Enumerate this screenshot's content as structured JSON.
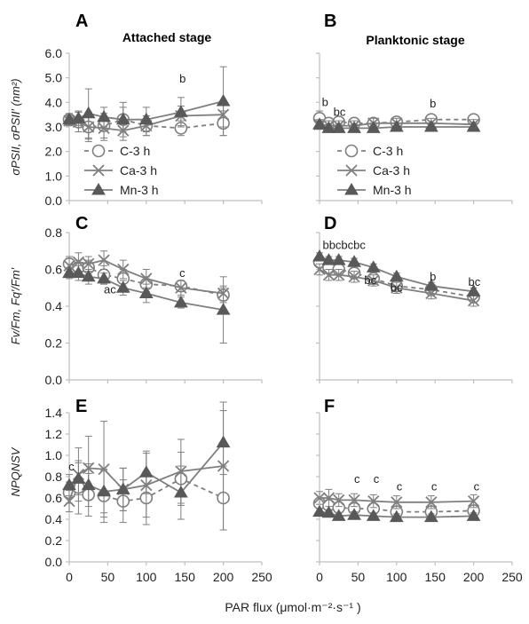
{
  "figure": {
    "stage_left": "Attached stage",
    "stage_right": "Planktonic stage",
    "xlabel": "PAR flux (μmol·m⁻²·s⁻¹ )",
    "ylabels": [
      "σPSII, σPSII′ (nm²)",
      "Fv/Fm, Fq′/Fm′",
      "NPQNSV"
    ],
    "legend": [
      {
        "name": "C-3 h",
        "marker": "circle",
        "dash": true
      },
      {
        "name": "Ca-3 h",
        "marker": "x",
        "dash": false
      },
      {
        "name": "Mn-3 h",
        "marker": "triangle",
        "dash": false
      }
    ],
    "colors": {
      "line": "#7f7f7f",
      "mn_fill": "#595959",
      "error": "#7f7f7f",
      "axis": "#bfbfbf"
    }
  },
  "chart_data": [
    {
      "panel": "A",
      "type": "line",
      "x": [
        0,
        12,
        25,
        45,
        70,
        100,
        145,
        200
      ],
      "xlim": [
        0,
        250
      ],
      "ylim": [
        0,
        6
      ],
      "yticks": [
        "0.0",
        "1.0",
        "2.0",
        "3.0",
        "4.0",
        "5.0",
        "6.0"
      ],
      "xticks": [
        "0",
        "50",
        "100",
        "150",
        "200",
        "250"
      ],
      "series": [
        {
          "name": "C-3 h",
          "values": [
            3.3,
            3.2,
            3.0,
            3.05,
            3.3,
            3.05,
            2.95,
            3.15
          ],
          "err": [
            0.25,
            0.4,
            0.6,
            0.5,
            0.7,
            0.4,
            0.3,
            0.5
          ]
        },
        {
          "name": "Ca-3 h",
          "values": [
            3.25,
            3.2,
            3.0,
            2.95,
            2.85,
            3.05,
            3.45,
            3.5
          ],
          "err": [
            0.2,
            0.4,
            0.5,
            0.5,
            0.4,
            0.4,
            0.4,
            0.5
          ]
        },
        {
          "name": "Mn-3 h",
          "values": [
            3.3,
            3.35,
            3.55,
            3.4,
            3.3,
            3.3,
            3.6,
            4.05
          ],
          "err": [
            0.2,
            0.3,
            1.0,
            0.4,
            0.5,
            0.5,
            0.6,
            1.4
          ]
        }
      ],
      "annotations": [
        {
          "text": "b",
          "x": 143,
          "y": 4.8
        }
      ]
    },
    {
      "panel": "B",
      "type": "line",
      "x": [
        0,
        12,
        25,
        45,
        70,
        100,
        145,
        200
      ],
      "xlim": [
        0,
        250
      ],
      "ylim": [
        0,
        6
      ],
      "yticks": [
        "0.0",
        "1.0",
        "2.0",
        "3.0",
        "4.0",
        "5.0",
        "6.0"
      ],
      "xticks": [
        "0",
        "50",
        "100",
        "150",
        "200",
        "250"
      ],
      "series": [
        {
          "name": "C-3 h",
          "values": [
            3.35,
            3.15,
            3.2,
            3.15,
            3.15,
            3.2,
            3.3,
            3.3
          ],
          "err": [
            0.3,
            0.2,
            0.2,
            0.2,
            0.2,
            0.2,
            0.2,
            0.2
          ]
        },
        {
          "name": "Ca-3 h",
          "values": [
            3.1,
            3.05,
            3.05,
            3.05,
            3.15,
            3.15,
            3.15,
            3.1
          ],
          "err": [
            0.2,
            0.2,
            0.2,
            0.2,
            0.2,
            0.2,
            0.2,
            0.2
          ]
        },
        {
          "name": "Mn-3 h",
          "values": [
            3.1,
            2.95,
            2.95,
            2.95,
            2.95,
            3.0,
            3.0,
            3.0
          ],
          "err": [
            0.15,
            0.15,
            0.15,
            0.15,
            0.15,
            0.15,
            0.15,
            0.15
          ]
        }
      ],
      "annotations": [
        {
          "text": "b",
          "x": 3,
          "y": 3.85
        },
        {
          "text": "bc",
          "x": 18,
          "y": 3.45
        },
        {
          "text": "b",
          "x": 143,
          "y": 3.8
        }
      ]
    },
    {
      "panel": "C",
      "type": "line",
      "x": [
        0,
        12,
        25,
        45,
        70,
        100,
        145,
        200
      ],
      "xlim": [
        0,
        250
      ],
      "ylim": [
        0,
        0.8
      ],
      "yticks": [
        "0.0",
        "0.2",
        "0.4",
        "0.6",
        "0.8"
      ],
      "xticks": [
        "0",
        "50",
        "100",
        "150",
        "200",
        "250"
      ],
      "series": [
        {
          "name": "C-3 h",
          "values": [
            0.63,
            0.61,
            0.61,
            0.57,
            0.55,
            0.52,
            0.51,
            0.46
          ],
          "err": [
            0.04,
            0.04,
            0.04,
            0.05,
            0.05,
            0.04,
            0.03,
            0.04
          ]
        },
        {
          "name": "Ca-3 h",
          "values": [
            0.62,
            0.64,
            0.63,
            0.65,
            0.6,
            0.55,
            0.5,
            0.47
          ],
          "err": [
            0.04,
            0.05,
            0.04,
            0.05,
            0.05,
            0.05,
            0.04,
            0.04
          ]
        },
        {
          "name": "Mn-3 h",
          "values": [
            0.58,
            0.58,
            0.56,
            0.55,
            0.5,
            0.47,
            0.42,
            0.38
          ],
          "err": [
            0.03,
            0.04,
            0.04,
            0.03,
            0.04,
            0.05,
            0.03,
            0.18
          ]
        }
      ],
      "annotations": [
        {
          "text": "ac",
          "x": 45,
          "y": 0.47
        },
        {
          "text": "c",
          "x": 143,
          "y": 0.56
        }
      ]
    },
    {
      "panel": "D",
      "type": "line",
      "x": [
        0,
        12,
        25,
        45,
        70,
        100,
        145,
        200
      ],
      "xlim": [
        0,
        250
      ],
      "ylim": [
        0,
        0.8
      ],
      "yticks": [
        "0.0",
        "0.2",
        "0.4",
        "0.6",
        "0.8"
      ],
      "xticks": [
        "0",
        "50",
        "100",
        "150",
        "200",
        "250"
      ],
      "series": [
        {
          "name": "C-3 h",
          "values": [
            0.64,
            0.61,
            0.6,
            0.58,
            0.55,
            0.51,
            0.49,
            0.45
          ],
          "err": [
            0.03,
            0.03,
            0.03,
            0.03,
            0.03,
            0.03,
            0.03,
            0.03
          ]
        },
        {
          "name": "Ca-3 h",
          "values": [
            0.6,
            0.57,
            0.57,
            0.56,
            0.54,
            0.5,
            0.47,
            0.43
          ],
          "err": [
            0.03,
            0.03,
            0.03,
            0.03,
            0.03,
            0.03,
            0.03,
            0.03
          ]
        },
        {
          "name": "Mn-3 h",
          "values": [
            0.67,
            0.65,
            0.65,
            0.64,
            0.61,
            0.56,
            0.51,
            0.48
          ],
          "err": [
            0.02,
            0.02,
            0.02,
            0.02,
            0.02,
            0.02,
            0.02,
            0.02
          ]
        }
      ],
      "annotations": [
        {
          "text": "bbcbcbc",
          "x": 4,
          "y": 0.71
        },
        {
          "text": "bc",
          "x": 58,
          "y": 0.52
        },
        {
          "text": "bc",
          "x": 92,
          "y": 0.48
        },
        {
          "text": "b",
          "x": 143,
          "y": 0.54
        },
        {
          "text": "bc",
          "x": 193,
          "y": 0.51
        }
      ]
    },
    {
      "panel": "E",
      "type": "line",
      "x": [
        0,
        12,
        25,
        45,
        70,
        100,
        145,
        200
      ],
      "xlim": [
        0,
        250
      ],
      "ylim": [
        0,
        1.4
      ],
      "yticks": [
        "0.0",
        "0.2",
        "0.4",
        "0.6",
        "0.8",
        "1.0",
        "1.2",
        "1.4"
      ],
      "xticks": [
        "0",
        "50",
        "100",
        "150",
        "200",
        "250"
      ],
      "series": [
        {
          "name": "C-3 h",
          "values": [
            0.65,
            0.7,
            0.63,
            0.62,
            0.57,
            0.6,
            0.78,
            0.6
          ],
          "err": [
            0.1,
            0.25,
            0.2,
            0.25,
            0.2,
            0.25,
            0.25,
            0.3
          ]
        },
        {
          "name": "Ca-3 h",
          "values": [
            0.57,
            0.82,
            0.88,
            0.87,
            0.68,
            0.72,
            0.85,
            0.9
          ],
          "err": [
            0.1,
            0.25,
            0.3,
            0.45,
            0.2,
            0.3,
            0.3,
            0.6
          ]
        },
        {
          "name": "Mn-3 h",
          "values": [
            0.72,
            0.78,
            0.72,
            0.66,
            0.68,
            0.84,
            0.65,
            1.12
          ],
          "err": [
            0.1,
            0.15,
            0.2,
            0.2,
            0.2,
            0.2,
            0.25,
            0.3
          ]
        }
      ],
      "annotations": [
        {
          "text": "c",
          "x": -1,
          "y": 0.86
        }
      ]
    },
    {
      "panel": "F",
      "type": "line",
      "x": [
        0,
        12,
        25,
        45,
        70,
        100,
        145,
        200
      ],
      "xlim": [
        0,
        250
      ],
      "ylim": [
        0,
        1.4
      ],
      "yticks": [
        "0.0",
        "0.2",
        "0.4",
        "0.6",
        "0.8",
        "1.0",
        "1.2",
        "1.4"
      ],
      "xticks": [
        "0",
        "50",
        "100",
        "150",
        "200",
        "250"
      ],
      "series": [
        {
          "name": "C-3 h",
          "values": [
            0.55,
            0.53,
            0.51,
            0.5,
            0.5,
            0.47,
            0.47,
            0.48
          ],
          "err": [
            0.04,
            0.04,
            0.04,
            0.04,
            0.04,
            0.04,
            0.04,
            0.04
          ]
        },
        {
          "name": "Ca-3 h",
          "values": [
            0.6,
            0.6,
            0.58,
            0.58,
            0.57,
            0.56,
            0.56,
            0.57
          ],
          "err": [
            0.06,
            0.08,
            0.06,
            0.06,
            0.06,
            0.06,
            0.06,
            0.06
          ]
        },
        {
          "name": "Mn-3 h",
          "values": [
            0.47,
            0.46,
            0.43,
            0.44,
            0.43,
            0.42,
            0.42,
            0.43
          ],
          "err": [
            0.03,
            0.03,
            0.03,
            0.03,
            0.03,
            0.03,
            0.03,
            0.03
          ]
        }
      ],
      "annotations": [
        {
          "text": "c",
          "x": 45,
          "y": 0.74
        },
        {
          "text": "c",
          "x": 70,
          "y": 0.74
        },
        {
          "text": "c",
          "x": 100,
          "y": 0.67
        },
        {
          "text": "c",
          "x": 145,
          "y": 0.67
        },
        {
          "text": "c",
          "x": 200,
          "y": 0.67
        }
      ]
    }
  ]
}
